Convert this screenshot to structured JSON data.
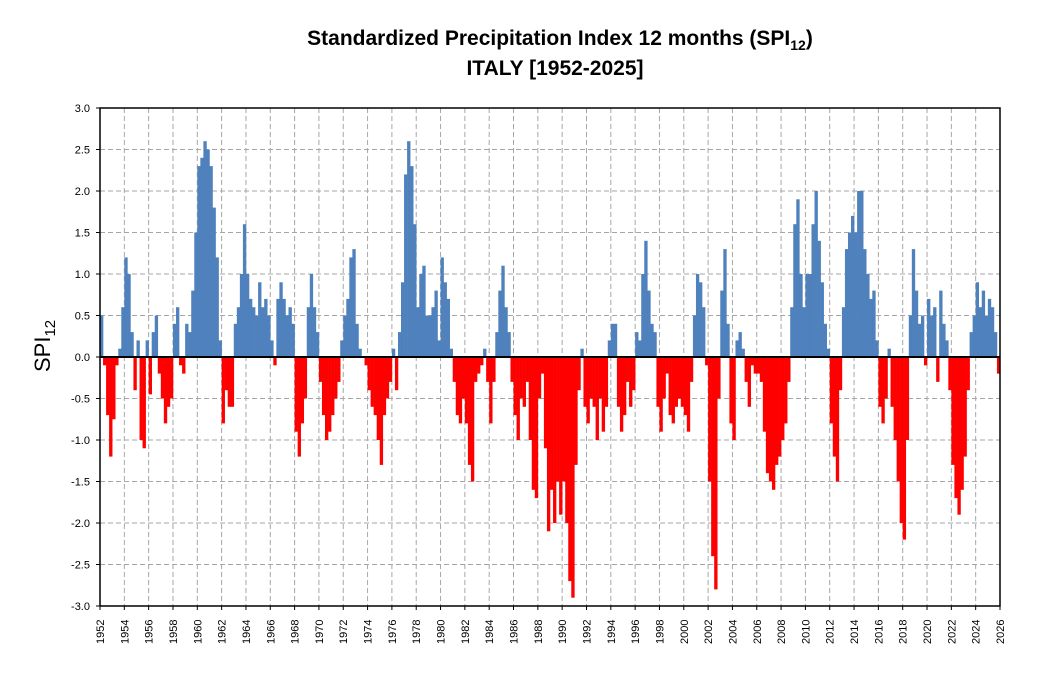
{
  "chart_data": {
    "type": "bar",
    "title": {
      "line1_main": "Standardized Precipitation Index 12 months (SPI",
      "line1_sub": "12",
      "line1_end": ")",
      "line2": "ITALY [1952-2025]"
    },
    "ylabel": {
      "main": "SPI",
      "sub": "12"
    },
    "xlabel": "",
    "xlim": [
      1952,
      2026
    ],
    "ylim": [
      -3.0,
      3.0
    ],
    "xticks": [
      "1952",
      "1954",
      "1956",
      "1958",
      "1960",
      "1962",
      "1964",
      "1966",
      "1968",
      "1970",
      "1972",
      "1974",
      "1976",
      "1978",
      "1980",
      "1982",
      "1984",
      "1986",
      "1988",
      "1990",
      "1992",
      "1994",
      "1996",
      "1998",
      "2000",
      "2002",
      "2004",
      "2006",
      "2008",
      "2010",
      "2012",
      "2014",
      "2016",
      "2018",
      "2020",
      "2022",
      "2024",
      "2026"
    ],
    "yticks": [
      "-3.0",
      "-2.5",
      "-2.0",
      "-1.5",
      "-1.0",
      "-0.5",
      "0.0",
      "0.5",
      "1.0",
      "1.5",
      "2.0",
      "2.5",
      "3.0"
    ],
    "grid": true,
    "legend": "none",
    "colors": {
      "positive": "#4F81BD",
      "negative": "#FF0000",
      "grid": "#A6A6A6"
    },
    "resolution": "quarterly (approximate readings of monthly bars)",
    "years": [
      1952,
      1953,
      1954,
      1955,
      1956,
      1957,
      1958,
      1959,
      1960,
      1961,
      1962,
      1963,
      1964,
      1965,
      1966,
      1967,
      1968,
      1969,
      1970,
      1971,
      1972,
      1973,
      1974,
      1975,
      1976,
      1977,
      1978,
      1979,
      1980,
      1981,
      1982,
      1983,
      1984,
      1985,
      1986,
      1987,
      1988,
      1989,
      1990,
      1991,
      1992,
      1993,
      1994,
      1995,
      1996,
      1997,
      1998,
      1999,
      2000,
      2001,
      2002,
      2003,
      2004,
      2005,
      2006,
      2007,
      2008,
      2009,
      2010,
      2011,
      2012,
      2013,
      2014,
      2015,
      2016,
      2017,
      2018,
      2019,
      2020,
      2021,
      2022,
      2023,
      2024,
      2025
    ],
    "quarterly_values": [
      [
        0.5,
        -0.1,
        -0.7,
        -1.2
      ],
      [
        -0.75,
        -0.1,
        0.1,
        0.6
      ],
      [
        1.2,
        1.0,
        0.3,
        -0.4
      ],
      [
        0.2,
        -1.0,
        -1.1,
        0.2
      ],
      [
        -0.45,
        0.3,
        0.5,
        -0.2
      ],
      [
        -0.5,
        -0.8,
        -0.6,
        -0.5
      ],
      [
        0.4,
        0.6,
        -0.1,
        -0.2
      ],
      [
        0.4,
        0.3,
        0.8,
        1.5
      ],
      [
        2.3,
        2.4,
        2.6,
        2.5
      ],
      [
        2.3,
        1.8,
        1.2,
        0.2
      ],
      [
        -0.8,
        -0.4,
        -0.6,
        -0.6
      ],
      [
        0.4,
        0.6,
        1.0,
        1.6
      ],
      [
        1.0,
        0.7,
        0.6,
        0.5
      ],
      [
        0.9,
        0.6,
        0.7,
        0.5
      ],
      [
        0.2,
        -0.1,
        0.7,
        0.9
      ],
      [
        0.7,
        0.5,
        0.6,
        0.4
      ],
      [
        -0.9,
        -1.2,
        -0.8,
        -0.5
      ],
      [
        0.6,
        1.0,
        0.6,
        0.3
      ],
      [
        -0.3,
        -0.7,
        -1.0,
        -0.9
      ],
      [
        -0.7,
        -0.5,
        -0.3,
        0.2
      ],
      [
        0.5,
        0.7,
        1.2,
        1.3
      ],
      [
        0.4,
        0.1,
        0.0,
        -0.1
      ],
      [
        -0.4,
        -0.6,
        -0.7,
        -1.0
      ],
      [
        -1.3,
        -0.7,
        -0.5,
        -0.3
      ],
      [
        0.1,
        -0.4,
        0.3,
        0.9
      ],
      [
        2.2,
        2.6,
        2.3,
        1.6
      ],
      [
        0.6,
        1.0,
        1.1,
        0.5
      ],
      [
        0.5,
        0.6,
        0.8,
        0.2
      ],
      [
        1.2,
        0.9,
        0.7,
        0.1
      ],
      [
        -0.3,
        -0.7,
        -0.8,
        -0.5
      ],
      [
        -0.8,
        -1.3,
        -1.5,
        -0.3
      ],
      [
        -0.2,
        -0.1,
        0.1,
        -0.3
      ],
      [
        -0.8,
        -0.3,
        0.3,
        0.8
      ],
      [
        1.1,
        0.6,
        0.3,
        -0.3
      ],
      [
        -0.7,
        -1.0,
        -0.5,
        -0.6
      ],
      [
        -0.3,
        -1.0,
        -1.6,
        -1.7
      ],
      [
        -0.5,
        -0.2,
        -1.1,
        -2.1
      ],
      [
        -1.6,
        -2.0,
        -1.5,
        -1.9
      ],
      [
        -1.5,
        -2.0,
        -2.7,
        -2.9
      ],
      [
        -1.3,
        -0.4,
        0.1,
        -0.6
      ],
      [
        -0.8,
        -0.5,
        -0.6,
        -1.0
      ],
      [
        -0.5,
        -0.9,
        -0.6,
        0.2
      ],
      [
        0.4,
        0.4,
        -0.6,
        -0.9
      ],
      [
        -0.7,
        -0.3,
        -0.6,
        -0.4
      ],
      [
        0.3,
        0.2,
        1.0,
        1.4
      ],
      [
        0.8,
        0.4,
        0.3,
        -0.6
      ],
      [
        -0.9,
        -0.5,
        -0.2,
        -0.7
      ],
      [
        -0.8,
        -0.6,
        -0.5,
        -0.6
      ],
      [
        -0.7,
        -0.9,
        -0.3,
        0.5
      ],
      [
        1.0,
        0.9,
        0.6,
        -0.1
      ],
      [
        -1.5,
        -2.4,
        -2.8,
        -0.5
      ],
      [
        0.8,
        1.3,
        0.4,
        -0.8
      ],
      [
        -1.0,
        0.2,
        0.3,
        0.1
      ],
      [
        -0.3,
        -0.6,
        -0.1,
        -0.2
      ],
      [
        -0.2,
        -0.3,
        -0.9,
        -1.4
      ],
      [
        -1.5,
        -1.6,
        -1.3,
        -1.2
      ],
      [
        -1.0,
        -0.8,
        -0.3,
        0.6
      ],
      [
        1.6,
        1.9,
        1.0,
        0.6
      ],
      [
        1.0,
        1.0,
        1.6,
        2.0
      ],
      [
        1.4,
        0.9,
        0.4,
        0.1
      ],
      [
        -0.8,
        -1.2,
        -1.5,
        -0.4
      ],
      [
        0.6,
        1.3,
        1.5,
        1.7
      ],
      [
        1.5,
        2.0,
        2.0,
        1.3
      ],
      [
        1.0,
        0.7,
        0.8,
        0.2
      ],
      [
        -0.6,
        -0.8,
        -0.5,
        0.1
      ],
      [
        -0.6,
        -1.0,
        -1.5,
        -2.0
      ],
      [
        -2.2,
        -1.0,
        0.5,
        1.3
      ],
      [
        0.8,
        0.4,
        0.5,
        -0.1
      ],
      [
        0.7,
        0.5,
        0.6,
        -0.3
      ],
      [
        0.8,
        0.4,
        0.2,
        -0.4
      ],
      [
        -1.3,
        -1.7,
        -1.9,
        -1.6
      ],
      [
        -1.2,
        -0.4,
        0.3,
        0.5
      ],
      [
        0.9,
        0.6,
        0.8,
        0.5
      ],
      [
        0.7,
        0.6,
        0.3,
        -0.2
      ]
    ]
  }
}
